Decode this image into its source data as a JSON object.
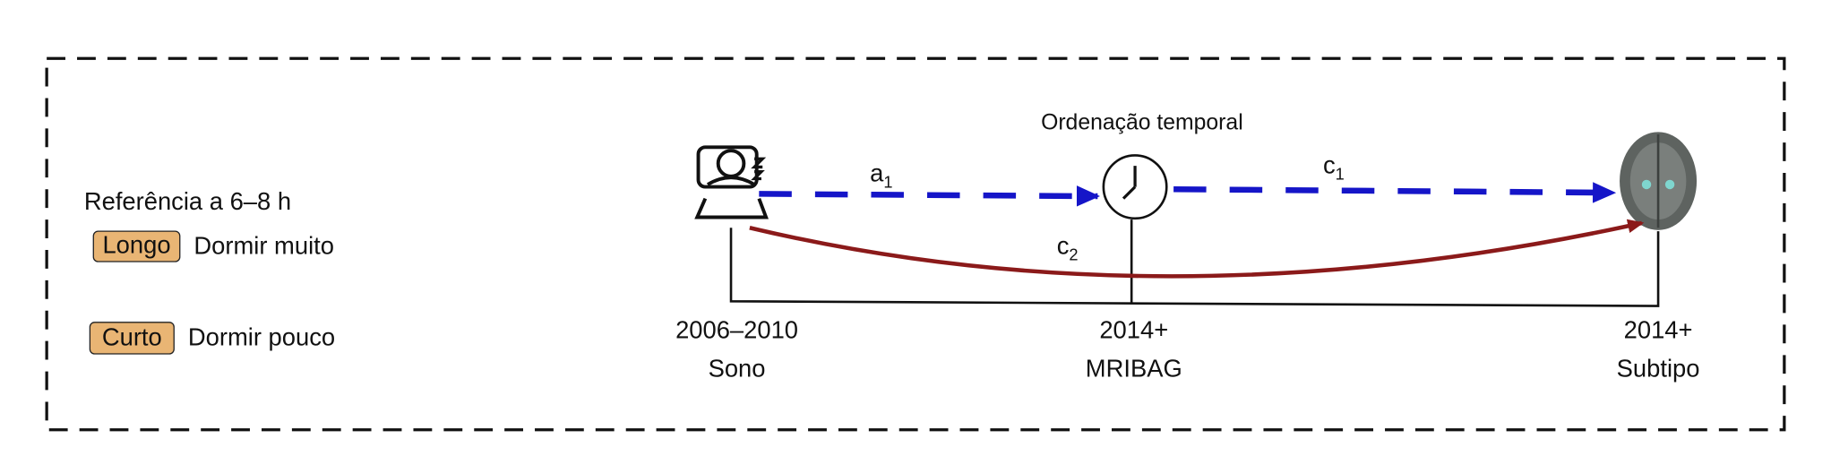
{
  "legend": {
    "title": "Referência a 6–8 h",
    "items": [
      {
        "tag": "Longo",
        "label": "Dormir muito"
      },
      {
        "tag": "Curto",
        "label": "Dormir pouco"
      }
    ]
  },
  "header": "Ordenação temporal",
  "nodes": [
    {
      "date": "2006–2010",
      "label": "Sono"
    },
    {
      "date": "2014+",
      "label": "MRIBAG"
    },
    {
      "date": "2014+",
      "label": "Subtipo"
    }
  ],
  "paths": [
    {
      "letter": "a",
      "sub": "1"
    },
    {
      "letter": "c",
      "sub": "1"
    },
    {
      "letter": "c",
      "sub": "2"
    }
  ]
}
